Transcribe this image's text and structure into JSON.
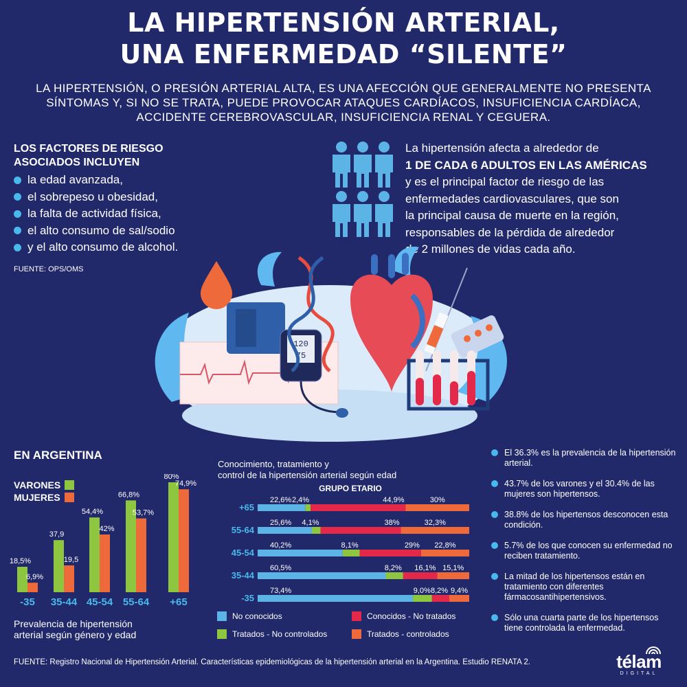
{
  "title": {
    "line1": "LA HIPERTENSIÓN ARTERIAL,",
    "line2": "UNA ENFERMEDAD “SILENTE”"
  },
  "intro": "LA HIPERTENSIÓN, O PRESIÓN ARTERIAL ALTA, ES UNA AFECCIÓN QUE GENERALMENTE NO PRESENTA SÍNTOMAS Y, SI NO SE TRATA, PUEDE PROVOCAR ATAQUES CARDÍACOS, INSUFICIENCIA CARDÍACA, ACCIDENTE CEREBROVASCULAR, INSUFICIENCIA RENAL Y CEGUERA.",
  "risk": {
    "title_line1": "LOS FACTORES DE RIESGO",
    "title_line2": "ASOCIADOS INCLUYEN",
    "items": [
      "la edad avanzada,",
      "el sobrepeso u obesidad,",
      "la falta de actividad física,",
      "el alto consumo de sal/sodio",
      "y el alto consumo de alcohol."
    ],
    "source": "FUENTE: OPS/OMS"
  },
  "americas": {
    "line1": "La hipertensión afecta a alrededor de",
    "line2": "1 DE CADA 6 ADULTOS EN LAS AMÉRICAS",
    "line3": "y es el principal factor de riesgo de las",
    "line4": "enfermedades cardiovasculares, que son",
    "line5": "la principal causa de muerte en la región,",
    "line6": "responsables de la pérdida de alrededor",
    "line7": "de 2 millones de vidas cada año."
  },
  "illustration": {
    "monitor_sys": "120",
    "monitor_dia": "75"
  },
  "argentina": {
    "title": "EN ARGENTINA",
    "legend_men": "VARONES",
    "legend_women": "MUJERES",
    "caption_line1": "Prevalencia de hipertensión",
    "caption_line2": "arterial según género y edad"
  },
  "stack": {
    "title_line1": "Conocimiento, tratamiento y",
    "title_line2": "control de la hipertensión arterial según edad"
  },
  "facts": [
    "El 36.3% es la prevalencia de la hipertensión arterial.",
    "43.7% de los varones y el 30.4% de las mujeres son hipertensos.",
    "38.8% de los hipertensos desconocen esta condición.",
    "5.7% de los que conocen su enfermedad no reciben tratamiento.",
    "La mitad de los hipertensos están en tratamiento con diferentes fármacosantihipertensivos.",
    "Sólo una cuarta parte de los hipertensos tiene controlada la enfermedad."
  ],
  "footer": "FUENTE: Registro Nacional de Hipertensión Arterial. Características epidemiológicas de la hipertensión arterial en la Argentina. Estudio RENATA 2.",
  "logo": {
    "word": "télam",
    "sub": "DIGITAL"
  },
  "colors": {
    "background": "#22296a",
    "accent_blue": "#49b8ec",
    "green": "#8ec63f",
    "orange": "#ef6a3b",
    "red": "#e3284a",
    "light_blue": "#5cb3e6"
  },
  "chart_data": [
    {
      "type": "bar",
      "categories": [
        "-35",
        "35-44",
        "45-54",
        "55-64",
        "+65"
      ],
      "series": [
        {
          "name": "VARONES",
          "values": [
            18.5,
            37.9,
            54.4,
            66.8,
            80
          ],
          "labels": [
            "18,5%",
            "37,9",
            "54,4%",
            "66,8%",
            "80%"
          ]
        },
        {
          "name": "MUJERES",
          "values": [
            6.9,
            19.5,
            42,
            53.7,
            74.9
          ],
          "labels": [
            "6,9%",
            "19,5",
            "42%",
            "53,7%",
            "74,9%"
          ]
        }
      ],
      "ylim": [
        0,
        80
      ]
    },
    {
      "type": "bar",
      "orientation": "horizontal-stacked",
      "header": "GRUPO ETARIO",
      "categories": [
        "+65",
        "55-64",
        "45-54",
        "35-44",
        "-35"
      ],
      "series": [
        {
          "name": "No conocidos",
          "values": [
            22.6,
            25.6,
            40.2,
            60.5,
            73.4
          ],
          "labels": [
            "22,6%",
            "25,6%",
            "40,2%",
            "60,5%",
            "73,4%"
          ]
        },
        {
          "name": "Tratados - No controlados",
          "values": [
            2.4,
            4.1,
            8.1,
            8.2,
            9.0
          ],
          "labels": [
            "2,4%",
            "4,1%",
            "8,1%",
            "8,2%",
            "9,0%"
          ]
        },
        {
          "name": "Conocidos - No tratados",
          "values": [
            44.9,
            38,
            29,
            16.1,
            8.2
          ],
          "labels": [
            "44,9%",
            "38%",
            "29%",
            "16,1%",
            "8,2%"
          ]
        },
        {
          "name": "Tratados - controlados",
          "values": [
            30,
            32.3,
            22.8,
            15.1,
            9.4
          ],
          "labels": [
            "30%",
            "32,3%",
            "22,8%",
            "15,1%",
            "9,4%"
          ]
        }
      ]
    }
  ]
}
